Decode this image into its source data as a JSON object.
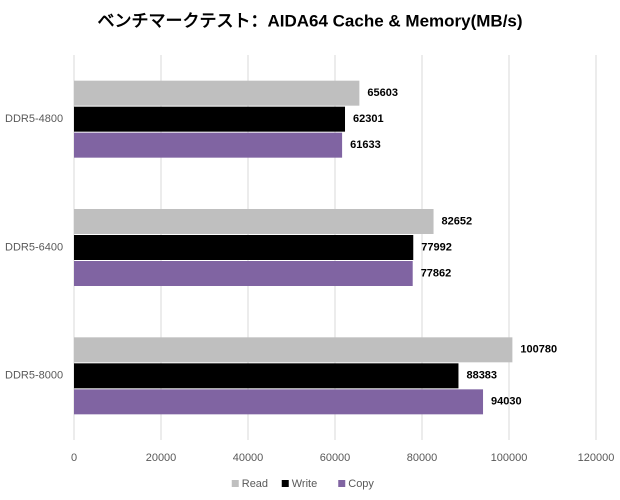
{
  "chart_data": {
    "type": "hbar",
    "title": "ベンチマークテスト：AIDA64 Cache & Memory(MB/s)",
    "categories": [
      "DDR5-4800",
      "DDR5-6400",
      "DDR5-8000"
    ],
    "series": [
      {
        "name": "Read",
        "color": "#bfbfbf",
        "values": [
          65603,
          82652,
          100780
        ]
      },
      {
        "name": "Write",
        "color": "#000000",
        "values": [
          62301,
          77992,
          88383
        ]
      },
      {
        "name": "Copy",
        "color": "#8064a2",
        "values": [
          61633,
          77862,
          94030
        ]
      }
    ],
    "xlim": [
      0,
      120000
    ],
    "xticks": [
      0,
      20000,
      40000,
      60000,
      80000,
      100000,
      120000
    ],
    "grid": true,
    "legend": "bottom"
  }
}
